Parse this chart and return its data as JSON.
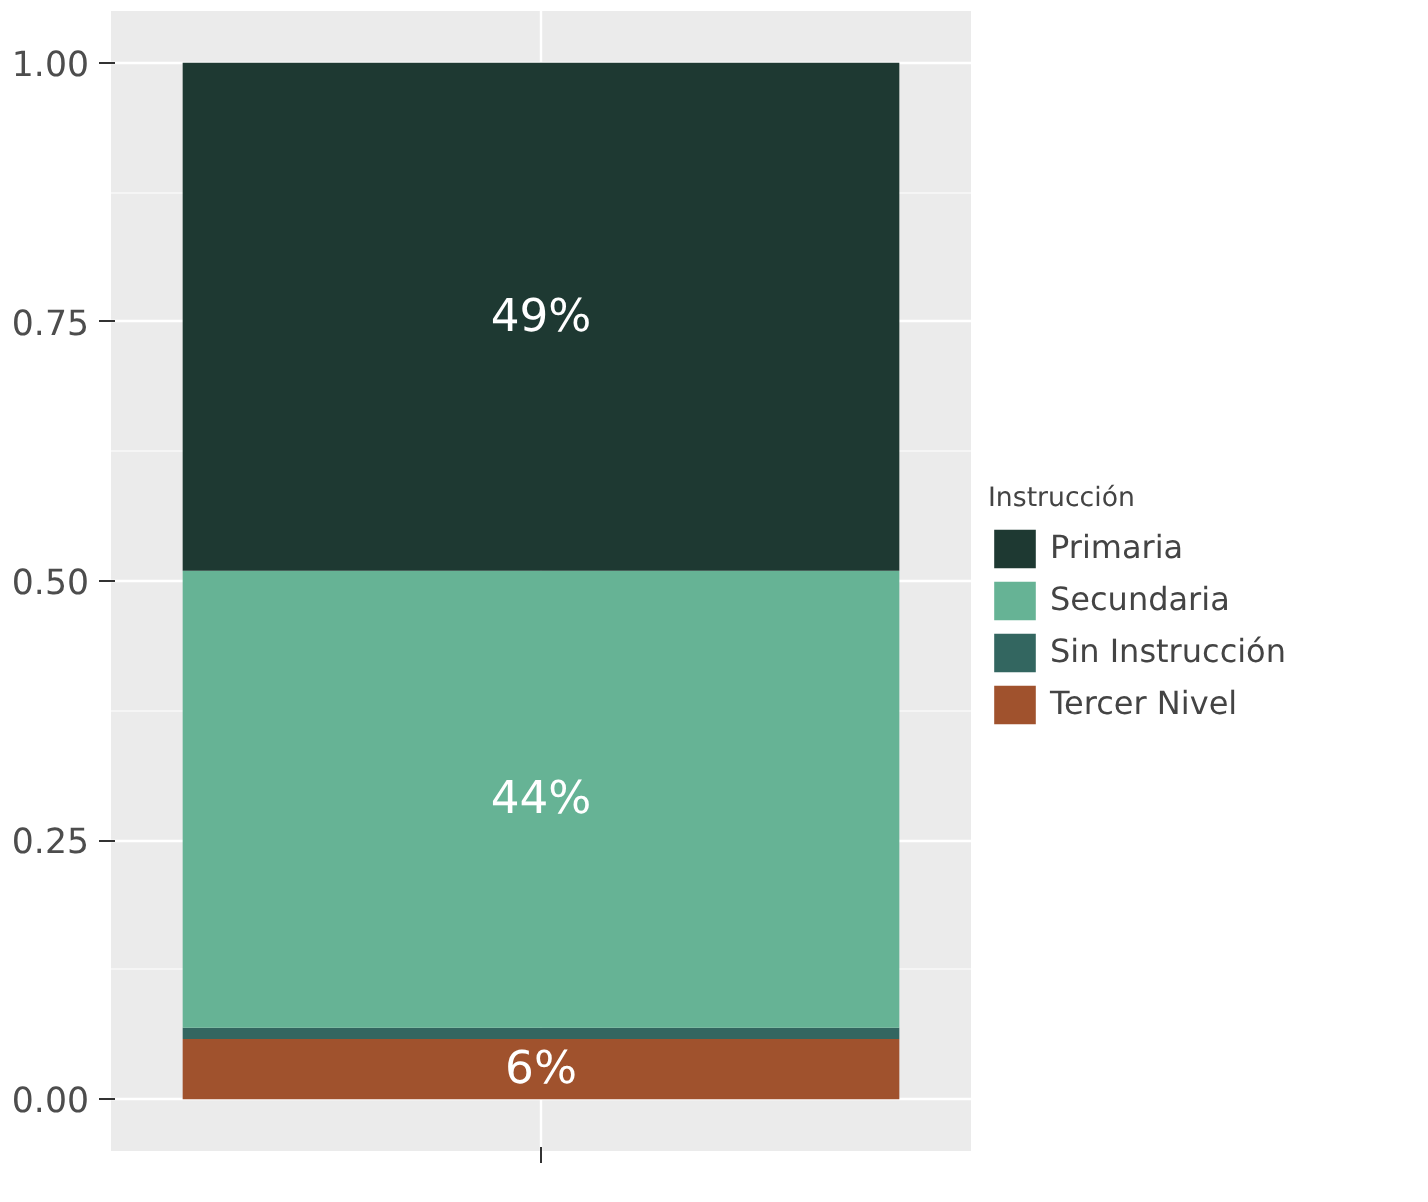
{
  "chart_data": {
    "type": "bar",
    "stacked": true,
    "categories": [
      null
    ],
    "legend_title": "Instrucción",
    "legend": "right",
    "grid": true,
    "ylim": [
      -0.05,
      1.05
    ],
    "yticks": [
      {
        "value": 0,
        "label": "0.00"
      },
      {
        "value": 0.25,
        "label": "0.25"
      },
      {
        "value": 0.5,
        "label": "0.50"
      },
      {
        "value": 0.75,
        "label": "0.75"
      },
      {
        "value": 1,
        "label": "1.00"
      }
    ],
    "series": [
      {
        "name": "Tercer Nivel",
        "color": "#a0522d",
        "values": [
          0.058
        ],
        "value_labels": [
          "6%"
        ]
      },
      {
        "name": "Sin Instrucción",
        "color": "#336660",
        "values": [
          0.011
        ],
        "value_labels": [
          null
        ]
      },
      {
        "name": "Secundaria",
        "color": "#66b395",
        "values": [
          0.441
        ],
        "value_labels": [
          "44%"
        ]
      },
      {
        "name": "Primaria",
        "color": "#1e3932",
        "values": [
          0.49
        ],
        "value_labels": [
          "49%"
        ]
      }
    ]
  }
}
